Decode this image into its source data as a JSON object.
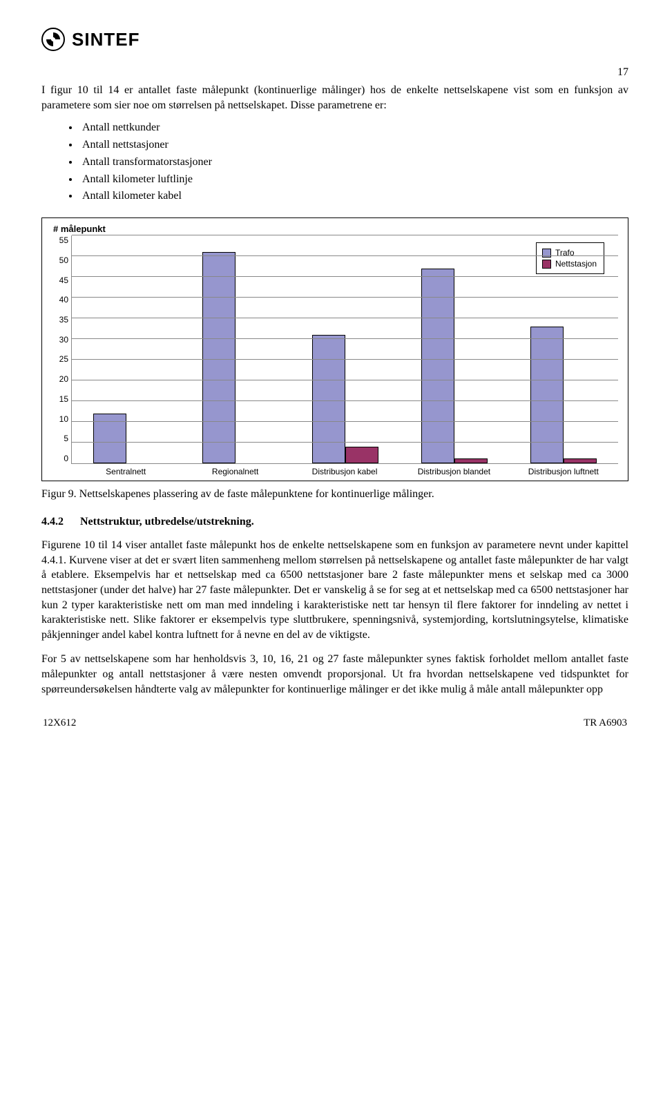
{
  "header": {
    "brand": "SINTEF",
    "page_number": "17"
  },
  "intro_paragraph": "I figur 10 til 14 er antallet faste målepunkt (kontinuerlige målinger) hos de enkelte nettselskapene vist som en funksjon av parametere som sier noe om størrelsen på nettselskapet. Disse parametrene er:",
  "bullets": [
    "Antall nettkunder",
    "Antall nettstasjoner",
    "Antall transformatorstasjoner",
    "Antall kilometer luftlinje",
    "Antall kilometer kabel"
  ],
  "chart": {
    "title": "# målepunkt",
    "categories": [
      "Sentralnett",
      "Regionalnett",
      "Distribusjon kabel",
      "Distribusjon blandet",
      "Distribusjon luftnett"
    ],
    "series": [
      {
        "name": "Trafo",
        "color": "#9696ce",
        "border": "#000000",
        "values": [
          12,
          51,
          31,
          47,
          33
        ]
      },
      {
        "name": "Nettstasjon",
        "color": "#993366",
        "border": "#000000",
        "values": [
          0,
          0,
          4,
          1.2,
          1.2
        ]
      }
    ],
    "y": {
      "min": 0,
      "max": 55,
      "step": 5
    },
    "grid_color": "#888888",
    "background": "#ffffff",
    "label_fontsize": 12,
    "title_fontsize": 13
  },
  "figure_caption": "Figur 9. Nettselskapenes plassering av de faste målepunktene for kontinuerlige målinger.",
  "subheading": {
    "number": "4.4.2",
    "title": "Nettstruktur, utbredelse/utstrekning."
  },
  "para2": "Figurene 10 til 14 viser antallet faste målepunkt hos de enkelte nettselskapene som en funksjon av parametere nevnt under kapittel 4.4.1. Kurvene viser at det er svært liten sammenheng mellom størrelsen på nettselskapene og antallet faste målepunkter de har valgt å etablere. Eksempelvis har et nettselskap med ca 6500 nettstasjoner bare 2 faste målepunkter mens et selskap med ca 3000 nettstasjoner (under det halve) har 27 faste målepunkter. Det er vanskelig å se for seg at et nettselskap med ca 6500 nettstasjoner har kun 2 typer karakteristiske nett om man med inndeling i karakteristiske nett tar hensyn til flere faktorer for inndeling av nettet i karakteristiske nett. Slike faktorer er eksempelvis type sluttbrukere, spenningsnivå, systemjording, kortslutningsytelse, klimatiske påkjenninger andel kabel kontra luftnett for å nevne en del av de viktigste.",
  "para3": "For 5 av nettselskapene som har henholdsvis 3, 10, 16, 21 og 27 faste målepunkter synes faktisk forholdet mellom antallet faste målepunkter og antall nettstasjoner å være nesten omvendt proporsjonal. Ut fra hvordan nettselskapene ved tidspunktet for spørreundersøkelsen håndterte valg av målepunkter for kontinuerlige målinger er det ikke mulig å måle antall målepunkter opp",
  "footer": {
    "left": "12X612",
    "right": "TR A6903"
  }
}
